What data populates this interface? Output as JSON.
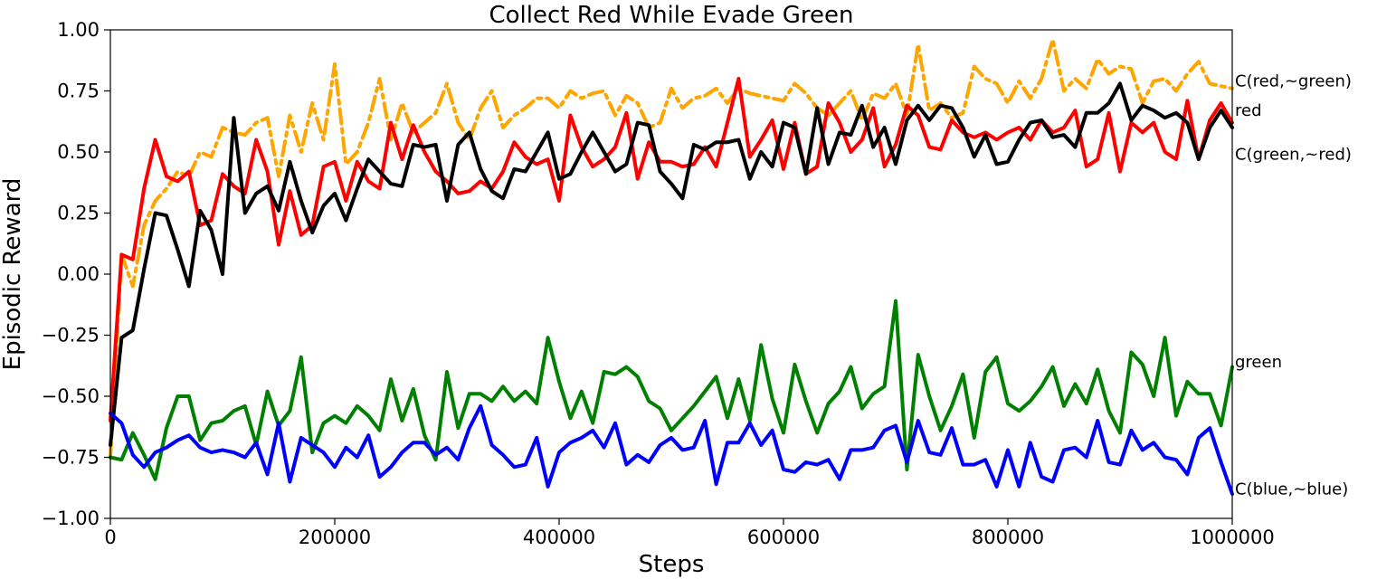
{
  "chart_data": {
    "type": "line",
    "title": "Collect Red While Evade Green",
    "xlabel": "Steps",
    "ylabel": "Episodic Reward",
    "xlim": [
      0,
      1000000
    ],
    "ylim": [
      -1.0,
      1.0
    ],
    "xticks": [
      0,
      200000,
      400000,
      600000,
      800000,
      1000000
    ],
    "xtick_labels": [
      "0",
      "200000",
      "400000",
      "600000",
      "800000",
      "1000000"
    ],
    "yticks": [
      -1.0,
      -0.75,
      -0.5,
      -0.25,
      0.0,
      0.25,
      0.5,
      0.75,
      1.0
    ],
    "ytick_labels": [
      "−1.00",
      "−0.75",
      "−0.50",
      "−0.25",
      "0.00",
      "0.25",
      "0.50",
      "0.75",
      "1.00"
    ],
    "grid": false,
    "legend": "labels-at-right-end",
    "x": [
      0,
      10000,
      20000,
      30000,
      40000,
      50000,
      60000,
      70000,
      80000,
      90000,
      100000,
      110000,
      120000,
      130000,
      140000,
      150000,
      160000,
      170000,
      180000,
      190000,
      200000,
      210000,
      220000,
      230000,
      240000,
      250000,
      260000,
      270000,
      280000,
      290000,
      300000,
      310000,
      320000,
      330000,
      340000,
      350000,
      360000,
      370000,
      380000,
      390000,
      400000,
      410000,
      420000,
      430000,
      440000,
      450000,
      460000,
      470000,
      480000,
      490000,
      500000,
      510000,
      520000,
      530000,
      540000,
      550000,
      560000,
      570000,
      580000,
      590000,
      600000,
      610000,
      620000,
      630000,
      640000,
      650000,
      660000,
      670000,
      680000,
      690000,
      700000,
      710000,
      720000,
      730000,
      740000,
      750000,
      760000,
      770000,
      780000,
      790000,
      800000,
      810000,
      820000,
      830000,
      840000,
      850000,
      860000,
      870000,
      880000,
      890000,
      900000,
      910000,
      920000,
      930000,
      940000,
      950000,
      960000,
      970000,
      980000,
      990000,
      1000000
    ],
    "series": [
      {
        "name": "C(red,~green)",
        "color": "#FFA500",
        "dash": "dashdot",
        "values": [
          -0.75,
          0.08,
          -0.05,
          0.2,
          0.3,
          0.35,
          0.42,
          0.4,
          0.5,
          0.48,
          0.6,
          0.58,
          0.57,
          0.62,
          0.64,
          0.4,
          0.65,
          0.5,
          0.7,
          0.55,
          0.86,
          0.45,
          0.5,
          0.62,
          0.8,
          0.55,
          0.7,
          0.58,
          0.62,
          0.66,
          0.78,
          0.62,
          0.55,
          0.68,
          0.75,
          0.6,
          0.65,
          0.68,
          0.72,
          0.72,
          0.68,
          0.75,
          0.72,
          0.74,
          0.75,
          0.65,
          0.73,
          0.7,
          0.6,
          0.62,
          0.76,
          0.68,
          0.72,
          0.73,
          0.76,
          0.7,
          0.76,
          0.74,
          0.73,
          0.72,
          0.71,
          0.78,
          0.74,
          0.68,
          0.65,
          0.7,
          0.75,
          0.63,
          0.74,
          0.72,
          0.78,
          0.65,
          0.94,
          0.67,
          0.7,
          0.64,
          0.66,
          0.85,
          0.8,
          0.78,
          0.7,
          0.79,
          0.72,
          0.8,
          0.96,
          0.75,
          0.8,
          0.76,
          0.88,
          0.82,
          0.85,
          0.84,
          0.7,
          0.79,
          0.8,
          0.75,
          0.82,
          0.87,
          0.78,
          0.77,
          0.76
        ]
      },
      {
        "name": "red",
        "color": "#FF0000",
        "dash": "solid",
        "values": [
          -0.6,
          0.08,
          0.06,
          0.35,
          0.55,
          0.4,
          0.38,
          0.42,
          0.2,
          0.22,
          0.41,
          0.36,
          0.33,
          0.55,
          0.42,
          0.12,
          0.34,
          0.16,
          0.2,
          0.44,
          0.46,
          0.3,
          0.46,
          0.38,
          0.35,
          0.62,
          0.47,
          0.61,
          0.5,
          0.42,
          0.38,
          0.33,
          0.34,
          0.38,
          0.35,
          0.42,
          0.54,
          0.48,
          0.45,
          0.47,
          0.3,
          0.65,
          0.52,
          0.44,
          0.47,
          0.52,
          0.66,
          0.39,
          0.54,
          0.46,
          0.46,
          0.44,
          0.45,
          0.52,
          0.44,
          0.62,
          0.8,
          0.48,
          0.55,
          0.63,
          0.43,
          0.62,
          0.41,
          0.44,
          0.7,
          0.62,
          0.5,
          0.55,
          0.68,
          0.44,
          0.53,
          0.69,
          0.65,
          0.52,
          0.51,
          0.63,
          0.58,
          0.56,
          0.58,
          0.55,
          0.58,
          0.6,
          0.55,
          0.63,
          0.58,
          0.6,
          0.67,
          0.44,
          0.47,
          0.66,
          0.42,
          0.62,
          0.58,
          0.62,
          0.5,
          0.47,
          0.71,
          0.47,
          0.63,
          0.7,
          0.62
        ]
      },
      {
        "name": "C(green,~red)",
        "color": "#000000",
        "dash": "solid",
        "values": [
          -0.7,
          -0.26,
          -0.23,
          0.02,
          0.25,
          0.24,
          0.1,
          -0.05,
          0.26,
          0.18,
          0.0,
          0.64,
          0.25,
          0.33,
          0.36,
          0.26,
          0.46,
          0.3,
          0.17,
          0.28,
          0.33,
          0.22,
          0.35,
          0.47,
          0.42,
          0.37,
          0.36,
          0.53,
          0.52,
          0.53,
          0.3,
          0.53,
          0.58,
          0.43,
          0.34,
          0.31,
          0.43,
          0.42,
          0.5,
          0.58,
          0.39,
          0.41,
          0.5,
          0.58,
          0.5,
          0.42,
          0.45,
          0.62,
          0.61,
          0.42,
          0.37,
          0.31,
          0.53,
          0.51,
          0.54,
          0.54,
          0.55,
          0.39,
          0.5,
          0.44,
          0.62,
          0.6,
          0.41,
          0.68,
          0.45,
          0.58,
          0.57,
          0.69,
          0.52,
          0.6,
          0.45,
          0.63,
          0.69,
          0.63,
          0.69,
          0.68,
          0.6,
          0.48,
          0.57,
          0.45,
          0.46,
          0.55,
          0.62,
          0.63,
          0.56,
          0.57,
          0.52,
          0.66,
          0.66,
          0.7,
          0.78,
          0.63,
          0.69,
          0.67,
          0.64,
          0.66,
          0.62,
          0.47,
          0.6,
          0.67,
          0.6
        ]
      },
      {
        "name": "green",
        "color": "#008000",
        "dash": "solid",
        "values": [
          -0.75,
          -0.76,
          -0.65,
          -0.74,
          -0.84,
          -0.63,
          -0.5,
          -0.5,
          -0.68,
          -0.61,
          -0.6,
          -0.56,
          -0.54,
          -0.7,
          -0.48,
          -0.62,
          -0.56,
          -0.34,
          -0.73,
          -0.61,
          -0.58,
          -0.61,
          -0.54,
          -0.58,
          -0.64,
          -0.43,
          -0.6,
          -0.47,
          -0.66,
          -0.76,
          -0.4,
          -0.63,
          -0.49,
          -0.49,
          -0.52,
          -0.46,
          -0.52,
          -0.48,
          -0.53,
          -0.26,
          -0.44,
          -0.59,
          -0.48,
          -0.61,
          -0.4,
          -0.41,
          -0.38,
          -0.42,
          -0.52,
          -0.55,
          -0.64,
          -0.59,
          -0.54,
          -0.48,
          -0.42,
          -0.59,
          -0.43,
          -0.6,
          -0.29,
          -0.51,
          -0.65,
          -0.37,
          -0.52,
          -0.65,
          -0.53,
          -0.48,
          -0.38,
          -0.55,
          -0.49,
          -0.46,
          -0.11,
          -0.8,
          -0.33,
          -0.5,
          -0.64,
          -0.54,
          -0.41,
          -0.67,
          -0.4,
          -0.34,
          -0.53,
          -0.56,
          -0.52,
          -0.46,
          -0.38,
          -0.54,
          -0.45,
          -0.53,
          -0.39,
          -0.56,
          -0.65,
          -0.32,
          -0.37,
          -0.5,
          -0.26,
          -0.58,
          -0.44,
          -0.49,
          -0.49,
          -0.62,
          -0.38
        ]
      },
      {
        "name": "C(blue,~blue)",
        "color": "#0000FF",
        "dash": "solid",
        "values": [
          -0.57,
          -0.61,
          -0.74,
          -0.79,
          -0.73,
          -0.71,
          -0.68,
          -0.66,
          -0.71,
          -0.73,
          -0.72,
          -0.73,
          -0.75,
          -0.69,
          -0.82,
          -0.61,
          -0.85,
          -0.67,
          -0.7,
          -0.73,
          -0.79,
          -0.71,
          -0.75,
          -0.66,
          -0.83,
          -0.79,
          -0.73,
          -0.69,
          -0.69,
          -0.74,
          -0.71,
          -0.76,
          -0.63,
          -0.54,
          -0.7,
          -0.74,
          -0.79,
          -0.78,
          -0.67,
          -0.87,
          -0.73,
          -0.69,
          -0.67,
          -0.64,
          -0.71,
          -0.61,
          -0.78,
          -0.74,
          -0.77,
          -0.7,
          -0.67,
          -0.72,
          -0.71,
          -0.6,
          -0.86,
          -0.69,
          -0.69,
          -0.61,
          -0.7,
          -0.64,
          -0.8,
          -0.81,
          -0.77,
          -0.78,
          -0.76,
          -0.84,
          -0.72,
          -0.72,
          -0.71,
          -0.64,
          -0.62,
          -0.77,
          -0.6,
          -0.73,
          -0.74,
          -0.63,
          -0.78,
          -0.78,
          -0.76,
          -0.87,
          -0.72,
          -0.87,
          -0.69,
          -0.83,
          -0.85,
          -0.72,
          -0.71,
          -0.75,
          -0.6,
          -0.77,
          -0.78,
          -0.64,
          -0.72,
          -0.69,
          -0.75,
          -0.76,
          -0.82,
          -0.67,
          -0.63,
          -0.77,
          -0.9
        ]
      }
    ],
    "series_label_y": [
      0.79,
      0.67,
      0.49,
      -0.36,
      -0.88
    ]
  }
}
